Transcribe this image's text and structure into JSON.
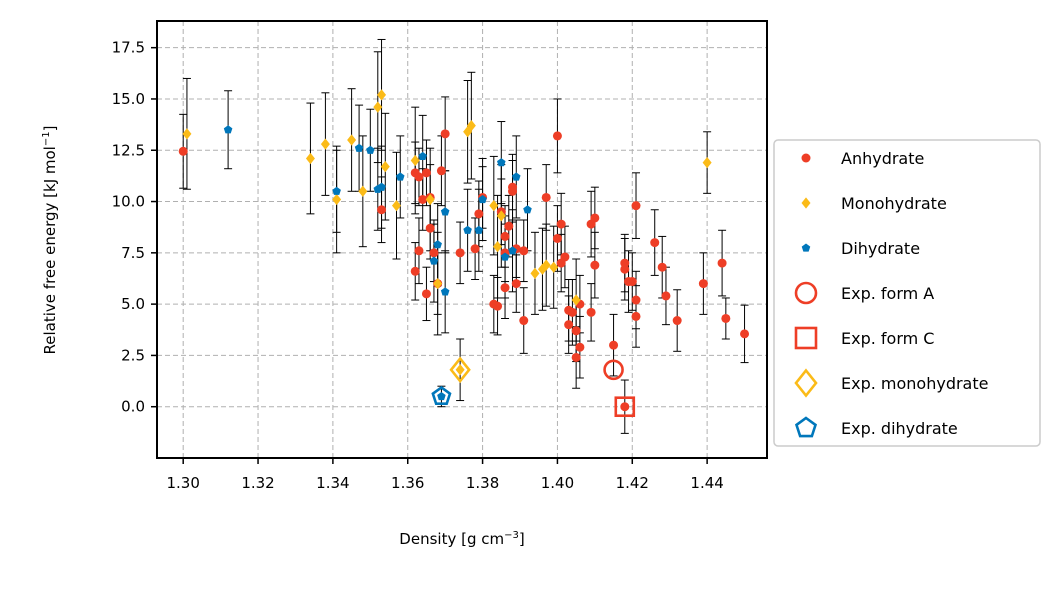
{
  "chart_data": {
    "type": "scatter",
    "xlabel": "Density [g cm",
    "xlabel_sup": "−3",
    "xlabel_end": "]",
    "ylabel": "Relative free energy [kJ mol",
    "ylabel_sup": "−1",
    "ylabel_end": "]",
    "xlim": [
      1.293,
      1.456
    ],
    "ylim": [
      -2.5,
      18.8
    ],
    "xticks": [
      1.3,
      1.32,
      1.34,
      1.36,
      1.38,
      1.4,
      1.42,
      1.44
    ],
    "xtick_labels": [
      "1.30",
      "1.32",
      "1.34",
      "1.36",
      "1.38",
      "1.40",
      "1.42",
      "1.44"
    ],
    "yticks": [
      0.0,
      2.5,
      5.0,
      7.5,
      10.0,
      12.5,
      15.0,
      17.5
    ],
    "ytick_labels": [
      "0.0",
      "2.5",
      "5.0",
      "7.5",
      "10.0",
      "12.5",
      "15.0",
      "17.5"
    ],
    "grid": true,
    "legend_position": "center-right outside",
    "colors": {
      "anhydrate": "#ee3e26",
      "monohydrate": "#fbbb18",
      "dihydrate": "#0077bb"
    },
    "series": [
      {
        "name": "Anhydrate",
        "marker": "circle",
        "color": "#ee3e26",
        "points": [
          [
            1.3,
            12.45,
            1.8
          ],
          [
            1.362,
            11.4,
            1.5
          ],
          [
            1.365,
            11.4,
            1.6
          ],
          [
            1.363,
            11.2,
            1.4
          ],
          [
            1.37,
            13.3,
            1.8
          ],
          [
            1.369,
            11.5,
            1.7
          ],
          [
            1.366,
            10.2,
            1.6
          ],
          [
            1.364,
            10.1,
            1.5
          ],
          [
            1.366,
            8.7,
            1.5
          ],
          [
            1.363,
            7.6,
            1.6
          ],
          [
            1.362,
            6.6,
            1.4
          ],
          [
            1.367,
            7.5,
            1.4
          ],
          [
            1.365,
            5.5,
            1.3
          ],
          [
            1.368,
            6.0,
            1.5
          ],
          [
            1.353,
            9.6,
            1.6
          ],
          [
            1.374,
            7.5,
            1.5
          ],
          [
            1.378,
            7.7,
            1.5
          ],
          [
            1.379,
            9.4,
            1.6
          ],
          [
            1.38,
            10.2,
            1.5
          ],
          [
            1.383,
            5.0,
            1.4
          ],
          [
            1.384,
            4.9,
            1.4
          ],
          [
            1.385,
            9.5,
            1.6
          ],
          [
            1.386,
            8.3,
            1.5
          ],
          [
            1.386,
            7.5,
            1.4
          ],
          [
            1.387,
            8.8,
            1.5
          ],
          [
            1.388,
            10.7,
            1.6
          ],
          [
            1.388,
            10.5,
            1.5
          ],
          [
            1.389,
            7.7,
            1.4
          ],
          [
            1.386,
            5.8,
            1.5
          ],
          [
            1.389,
            6.0,
            1.4
          ],
          [
            1.391,
            4.2,
            1.6
          ],
          [
            1.391,
            7.6,
            1.5
          ],
          [
            1.397,
            10.2,
            1.6
          ],
          [
            1.4,
            13.2,
            1.8
          ],
          [
            1.4,
            8.2,
            1.6
          ],
          [
            1.401,
            8.9,
            1.5
          ],
          [
            1.402,
            7.3,
            1.5
          ],
          [
            1.401,
            7.0,
            1.4
          ],
          [
            1.403,
            4.7,
            1.5
          ],
          [
            1.403,
            4.0,
            1.4
          ],
          [
            1.404,
            4.6,
            1.6
          ],
          [
            1.405,
            3.7,
            1.5
          ],
          [
            1.405,
            2.4,
            1.5
          ],
          [
            1.406,
            2.9,
            1.5
          ],
          [
            1.406,
            5.0,
            1.4
          ],
          [
            1.409,
            8.9,
            1.6
          ],
          [
            1.41,
            9.2,
            1.5
          ],
          [
            1.41,
            6.9,
            1.6
          ],
          [
            1.409,
            4.6,
            1.4
          ],
          [
            1.415,
            3.0,
            1.5
          ],
          [
            1.418,
            6.7,
            1.5
          ],
          [
            1.418,
            7.0,
            1.4
          ],
          [
            1.419,
            6.1,
            1.5
          ],
          [
            1.42,
            6.1,
            1.4
          ],
          [
            1.421,
            4.4,
            1.5
          ],
          [
            1.421,
            5.2,
            1.4
          ],
          [
            1.421,
            9.8,
            1.6
          ],
          [
            1.426,
            8.0,
            1.6
          ],
          [
            1.428,
            6.8,
            1.5
          ],
          [
            1.429,
            5.4,
            1.4
          ],
          [
            1.432,
            4.2,
            1.5
          ],
          [
            1.439,
            6.0,
            1.5
          ],
          [
            1.444,
            7.0,
            1.6
          ],
          [
            1.445,
            4.3,
            1.0
          ],
          [
            1.45,
            3.55,
            1.4
          ],
          [
            1.418,
            0.0,
            1.3
          ]
        ]
      },
      {
        "name": "Monohydrate",
        "marker": "diamond",
        "color": "#fbbb18",
        "points": [
          [
            1.301,
            13.3,
            2.7
          ],
          [
            1.334,
            12.1,
            2.7
          ],
          [
            1.338,
            12.8,
            2.5
          ],
          [
            1.341,
            10.1,
            2.6
          ],
          [
            1.345,
            13.0,
            2.5
          ],
          [
            1.348,
            10.5,
            2.7
          ],
          [
            1.352,
            14.6,
            2.7
          ],
          [
            1.353,
            15.2,
            2.7
          ],
          [
            1.354,
            11.7,
            2.6
          ],
          [
            1.357,
            9.8,
            2.6
          ],
          [
            1.362,
            12.0,
            2.6
          ],
          [
            1.366,
            10.1,
            2.5
          ],
          [
            1.368,
            6.0,
            2.5
          ],
          [
            1.376,
            13.4,
            2.5
          ],
          [
            1.377,
            13.7,
            2.6
          ],
          [
            1.383,
            9.8,
            2.4
          ],
          [
            1.385,
            9.3,
            2.5
          ],
          [
            1.384,
            7.8,
            2.5
          ],
          [
            1.394,
            6.5,
            2.0
          ],
          [
            1.396,
            6.7,
            2.0
          ],
          [
            1.397,
            6.9,
            2.0
          ],
          [
            1.399,
            6.8,
            2.0
          ],
          [
            1.405,
            5.2,
            2.0
          ],
          [
            1.44,
            11.9,
            1.5
          ],
          [
            1.374,
            1.8,
            1.5
          ]
        ]
      },
      {
        "name": "Dihydrate",
        "marker": "pentagon",
        "color": "#0077bb",
        "points": [
          [
            1.312,
            13.5,
            1.9
          ],
          [
            1.341,
            10.5,
            2.0
          ],
          [
            1.347,
            12.6,
            2.1
          ],
          [
            1.35,
            12.5,
            2.0
          ],
          [
            1.352,
            10.6,
            2.0
          ],
          [
            1.353,
            10.7,
            2.0
          ],
          [
            1.358,
            11.2,
            2.0
          ],
          [
            1.364,
            12.2,
            2.0
          ],
          [
            1.367,
            7.1,
            2.0
          ],
          [
            1.368,
            7.9,
            2.0
          ],
          [
            1.37,
            5.6,
            2.0
          ],
          [
            1.37,
            9.5,
            2.0
          ],
          [
            1.376,
            8.6,
            2.0
          ],
          [
            1.379,
            8.6,
            2.0
          ],
          [
            1.38,
            10.1,
            2.0
          ],
          [
            1.385,
            11.9,
            2.0
          ],
          [
            1.386,
            7.3,
            2.0
          ],
          [
            1.388,
            7.6,
            2.0
          ],
          [
            1.389,
            11.2,
            2.0
          ],
          [
            1.392,
            9.6,
            2.0
          ],
          [
            1.369,
            0.5,
            0.5
          ]
        ]
      },
      {
        "name": "Exp. form A",
        "marker": "open-circle",
        "color": "#ee3e26",
        "points": [
          [
            1.415,
            1.8
          ]
        ]
      },
      {
        "name": "Exp. form C",
        "marker": "open-square",
        "color": "#ee3e26",
        "points": [
          [
            1.418,
            0.0
          ]
        ]
      },
      {
        "name": "Exp. monohydrate",
        "marker": "open-diamond",
        "color": "#fbbb18",
        "points": [
          [
            1.374,
            1.8
          ]
        ]
      },
      {
        "name": "Exp. dihydrate",
        "marker": "open-pentagon",
        "color": "#0077bb",
        "points": [
          [
            1.369,
            0.5
          ]
        ]
      }
    ]
  }
}
